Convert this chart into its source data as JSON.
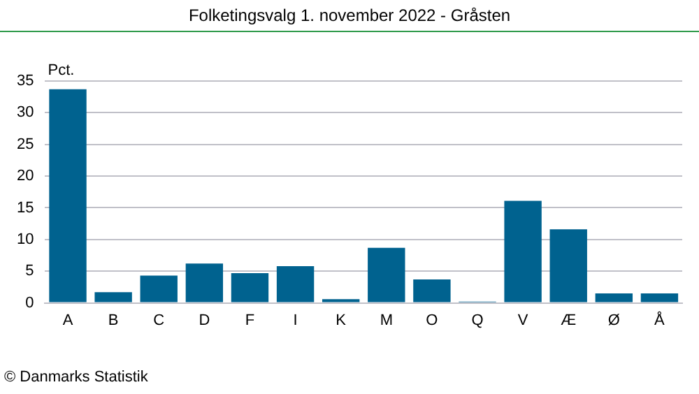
{
  "chart_data": {
    "type": "bar",
    "title": "Folketingsvalg 1. november 2022 - Gråsten",
    "ylabel": "Pct.",
    "categories": [
      "A",
      "B",
      "C",
      "D",
      "F",
      "I",
      "K",
      "M",
      "O",
      "Q",
      "V",
      "Æ",
      "Ø",
      "Å"
    ],
    "values": [
      33.7,
      1.7,
      4.3,
      6.2,
      4.7,
      5.8,
      0.6,
      8.7,
      3.7,
      0.2,
      16.1,
      11.6,
      1.5,
      1.5
    ],
    "color": "#00628f",
    "ylim": [
      0,
      35
    ],
    "yticks": [
      0,
      5,
      10,
      15,
      20,
      25,
      30,
      35
    ],
    "grid": "y",
    "legend": false,
    "annotations": [
      "© Danmarks Statistik"
    ]
  }
}
